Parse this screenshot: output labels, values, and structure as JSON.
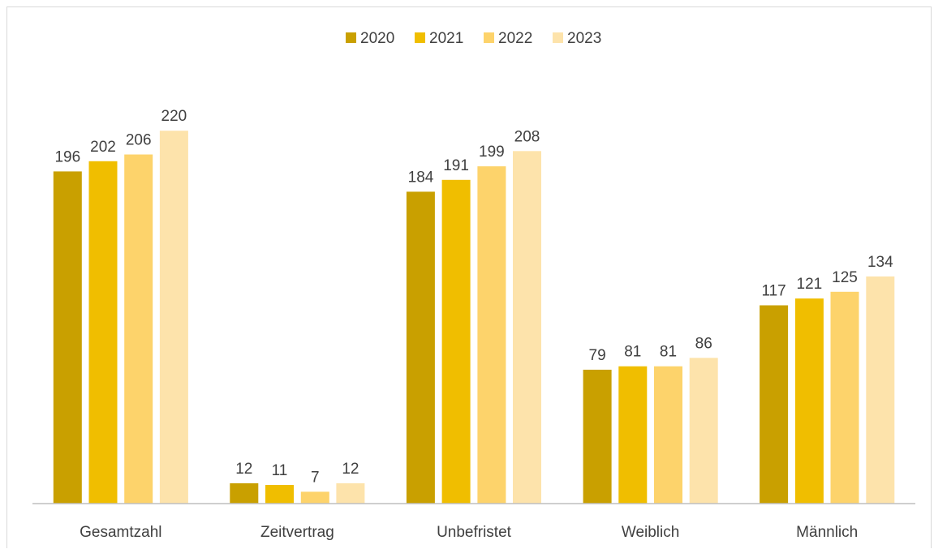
{
  "chart_data": {
    "type": "bar",
    "title": "",
    "xlabel": "",
    "ylabel": "",
    "categories": [
      "Gesamtzahl",
      "Zeitvertrag",
      "Unbefristet",
      "Weiblich",
      "Männlich"
    ],
    "series": [
      {
        "name": "2020",
        "color": "#c9a000",
        "values": [
          196,
          12,
          184,
          79,
          117
        ]
      },
      {
        "name": "2021",
        "color": "#f0be00",
        "values": [
          202,
          11,
          191,
          81,
          121
        ]
      },
      {
        "name": "2022",
        "color": "#fdd36b",
        "values": [
          206,
          7,
          199,
          81,
          125
        ]
      },
      {
        "name": "2023",
        "color": "#fde3ab",
        "values": [
          220,
          12,
          208,
          86,
          134
        ]
      }
    ],
    "ylim": [
      0,
      220
    ],
    "grid": false,
    "legend_position": "top-center",
    "show_data_labels": true
  }
}
